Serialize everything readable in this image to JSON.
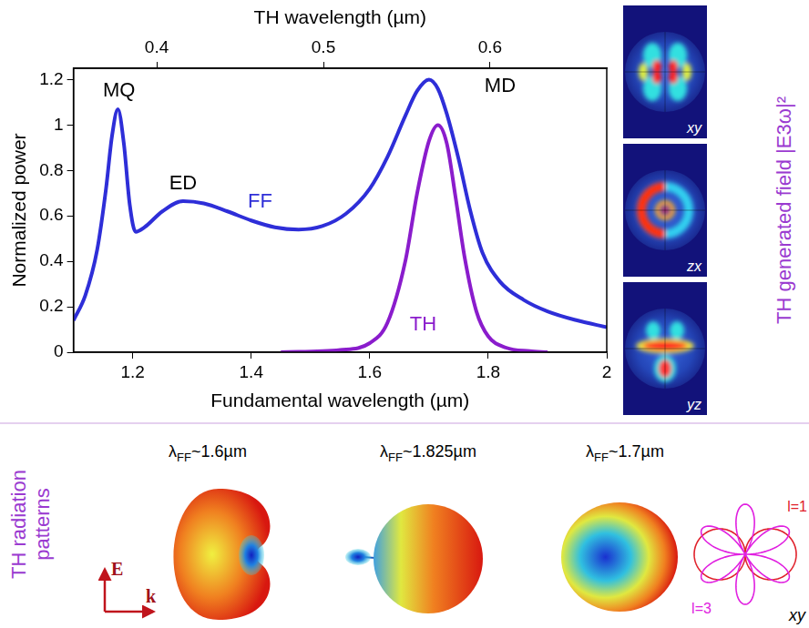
{
  "chart_data": {
    "type": "line",
    "x_label": "Fundamental wavelength (µm)",
    "x2_label": "TH wavelength (µm)",
    "y_label": "Normalized power",
    "xlim": [
      1.1,
      2
    ],
    "xticks": [
      1.2,
      1.4,
      1.6,
      1.8,
      2
    ],
    "x2lim": [
      0.35,
      0.67
    ],
    "x2ticks": [
      0.4,
      0.5,
      0.6
    ],
    "ylim": [
      0,
      1.25
    ],
    "yticks": [
      0,
      0.2,
      0.4,
      0.6,
      0.8,
      1,
      1.2
    ],
    "grid": false,
    "series": [
      {
        "name": "FF",
        "color": "#2e2ed8",
        "name_at": [
          1.415,
          0.66
        ],
        "x": [
          1.1,
          1.12,
          1.14,
          1.155,
          1.165,
          1.175,
          1.185,
          1.195,
          1.205,
          1.22,
          1.25,
          1.285,
          1.32,
          1.36,
          1.4,
          1.44,
          1.48,
          1.52,
          1.56,
          1.6,
          1.63,
          1.66,
          1.68,
          1.7,
          1.715,
          1.73,
          1.75,
          1.77,
          1.79,
          1.82,
          1.86,
          1.9,
          1.95,
          2
        ],
        "values": [
          0.14,
          0.25,
          0.45,
          0.72,
          0.95,
          1.07,
          0.92,
          0.65,
          0.53,
          0.55,
          0.62,
          0.665,
          0.655,
          0.62,
          0.58,
          0.55,
          0.54,
          0.555,
          0.61,
          0.72,
          0.86,
          1.04,
          1.15,
          1.2,
          1.16,
          1.05,
          0.85,
          0.62,
          0.44,
          0.31,
          0.23,
          0.18,
          0.14,
          0.11
        ]
      },
      {
        "name": "TH",
        "color": "#8a1ccc",
        "name_at": [
          1.69,
          0.12
        ],
        "x": [
          1.45,
          1.55,
          1.6,
          1.63,
          1.66,
          1.68,
          1.7,
          1.715,
          1.73,
          1.745,
          1.76,
          1.78,
          1.8,
          1.83,
          1.87,
          1.9
        ],
        "values": [
          0,
          0.01,
          0.04,
          0.13,
          0.4,
          0.7,
          0.93,
          1,
          0.92,
          0.68,
          0.42,
          0.18,
          0.07,
          0.02,
          0.005,
          0
        ]
      }
    ],
    "annotations": [
      {
        "text": "MQ",
        "x": 1.177,
        "y": 1.15
      },
      {
        "text": "ED",
        "x": 1.285,
        "y": 0.74
      },
      {
        "text": "MD",
        "x": 1.82,
        "y": 1.17
      }
    ]
  },
  "field_maps": {
    "title": "TH generated field |E3ω|²",
    "planes": [
      "xy",
      "zx",
      "yz"
    ]
  },
  "radiation_patterns": {
    "title": "TH radiation patterns",
    "patterns": [
      {
        "symbol": "λ",
        "subscript": "FF",
        "text": "~1.6µm"
      },
      {
        "symbol": "λ",
        "subscript": "FF",
        "text": "~1.825µm"
      },
      {
        "symbol": "λ",
        "subscript": "FF",
        "text": "~1.7µm"
      }
    ],
    "field_axes": [
      "E",
      "k"
    ],
    "polar": {
      "curves": [
        {
          "label": "l=1",
          "color": "#e0202a"
        },
        {
          "label": "l=3",
          "color": "#e020e0"
        }
      ],
      "plane": "xy"
    }
  }
}
